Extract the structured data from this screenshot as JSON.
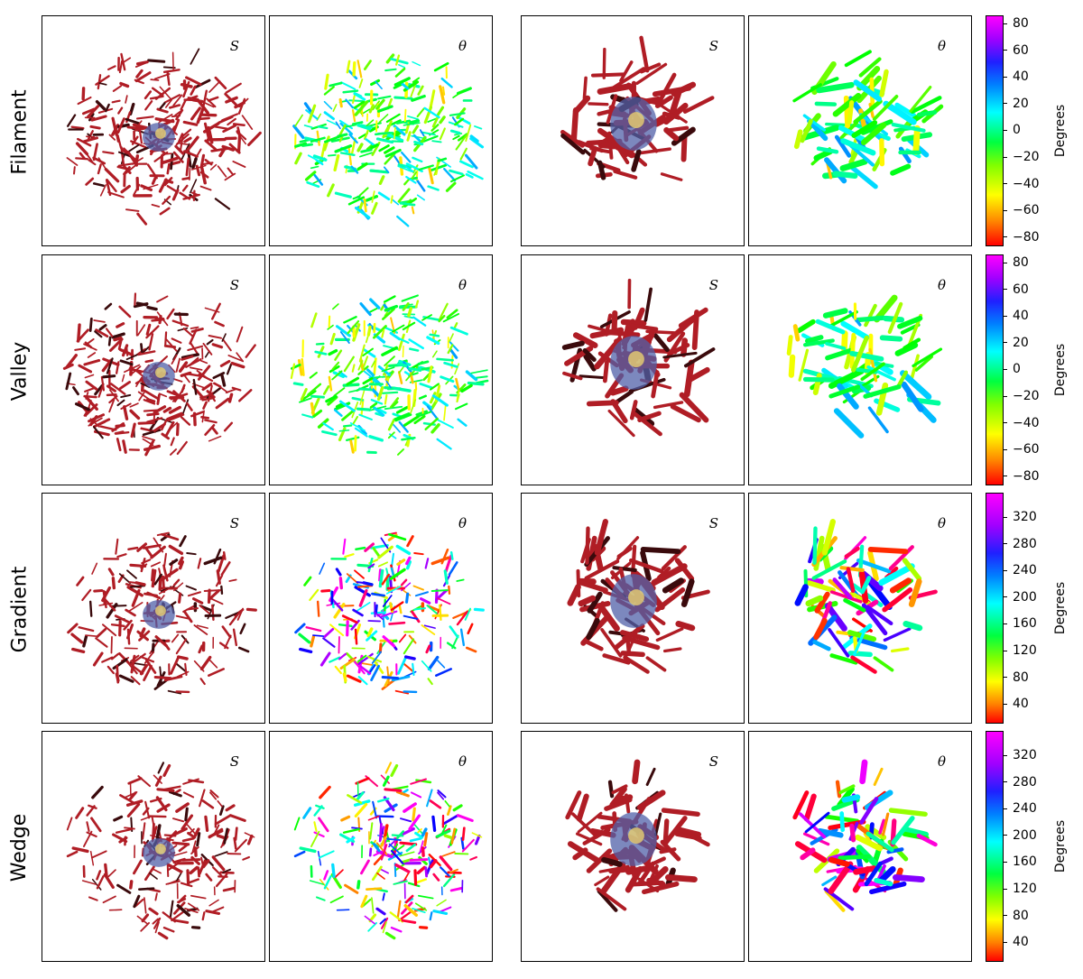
{
  "rows": [
    {
      "label": "Filament",
      "cbar": {
        "ticks": [
          "80",
          "60",
          "40",
          "20",
          "0",
          "−20",
          "−40",
          "−60",
          "−80"
        ],
        "title": "Degrees",
        "type": "hue180"
      }
    },
    {
      "label": "Valley",
      "cbar": {
        "ticks": [
          "80",
          "60",
          "40",
          "20",
          "0",
          "−20",
          "−40",
          "−60",
          "−80"
        ],
        "title": "Degrees",
        "type": "hue180"
      }
    },
    {
      "label": "Gradient",
      "cbar": {
        "ticks": [
          "320",
          "280",
          "240",
          "200",
          "160",
          "120",
          "80",
          "40"
        ],
        "title": "Degrees",
        "type": "hue360"
      }
    },
    {
      "label": "Wedge",
      "cbar": {
        "ticks": [
          "320",
          "280",
          "240",
          "200",
          "160",
          "120",
          "80",
          "40"
        ],
        "title": "Degrees",
        "type": "hue360"
      }
    }
  ],
  "panel_labels": {
    "strength": "S",
    "angle": "θ"
  },
  "colors": {
    "strength": "#b01d25",
    "strength_dark": "#3a0a0c",
    "core": "#5060a8",
    "core_glow": "#e8d070"
  }
}
